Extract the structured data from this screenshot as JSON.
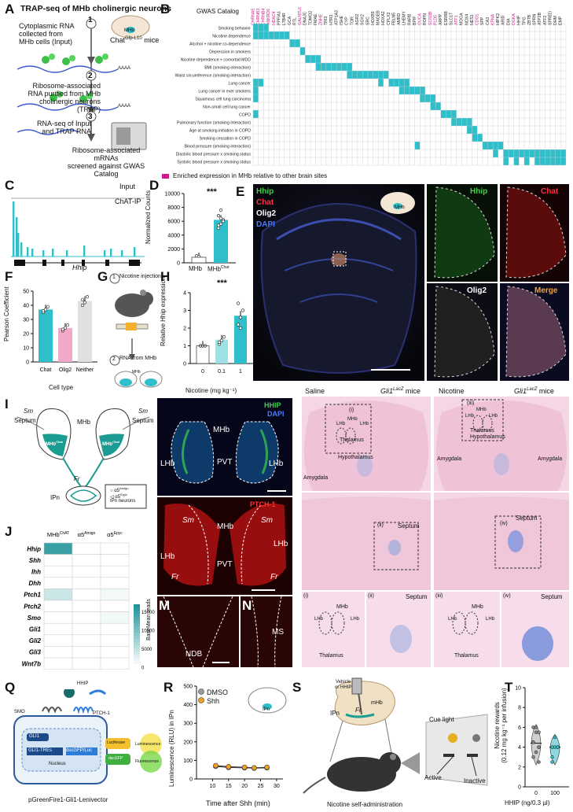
{
  "panels": {
    "A": {
      "label": "A",
      "title": "TRAP-seq of MHb cholinergic neurons",
      "steps": [
        {
          "n": "1",
          "text": "Cytoplasmic RNA\ncollected from\nMHb cells (Input)"
        },
        {
          "n": "2",
          "text": "Ribosome-associated\nRNA purified from MHb\ncholinergic neurons (TRAP)"
        },
        {
          "n": "3",
          "text": "RNA-seq of Input\nand TRAP RNA"
        }
      ],
      "step3b": "Ribosome-associated\nmRNAs\nscreened against GWAS Catalog",
      "mice": "Chat",
      "mice_sup": "Gfp-L10",
      "mice_tail": " mice",
      "mhb": "MHb",
      "aaaa": "AAAA"
    },
    "B": {
      "label": "B",
      "catalog": "GWAS Catalog",
      "genes": [
        "CHRNA5",
        "CHRNB3",
        "CHRNB4",
        "ANKRD6",
        "HDAC4",
        "PPFIA1",
        "LTB4R",
        "GCA",
        "RTL",
        "GALNTL6",
        "DNAJC",
        "TDMO2",
        "FMAE",
        "ZNHE",
        "TRI3",
        "HTR2",
        "ATP1A3",
        "ISHE",
        "CYP",
        "TOR",
        "AGR2",
        "SOX2",
        "SRC",
        "HOXB9",
        "MAGEB",
        "HOXA2",
        "CPLX3",
        "FBLN5",
        "AMRD",
        "LHEMY",
        "RARB",
        "BPIF",
        "GUCA",
        "ROPN",
        "SCN3B",
        "PLD5",
        "ARPP",
        "ESRRB",
        "SLC17",
        "ATP1",
        "MDGA",
        "NOX4",
        "HES1",
        "CDO1",
        "SPP",
        "CA3",
        "KPNA",
        "HIPK2",
        "ARID",
        "DIA",
        "DGKA",
        "HHIP",
        "TPG",
        "ZBTB",
        "SPRN",
        "ATP2B",
        "ATF2",
        "SPRED",
        "DHM",
        "EMP"
      ],
      "highlighted": [
        0,
        1,
        2,
        3,
        4,
        9,
        13,
        32,
        34,
        35,
        39,
        43,
        46,
        50
      ],
      "traits": [
        "Smoking behavior",
        "Nicotine dependence",
        "Alcohol + nicotine co-dependence",
        "Depression in smokers",
        "Nicotine dependence + comorbid MDD",
        "BMI (smoking interaction)",
        "Waist circumference (smoking interaction)",
        "Lung cancer",
        "Lung cancer in ever smokers",
        "Squamous cell lung carcinoma",
        "Non-small cell lung cancer",
        "COPD",
        "Pulmonary function (smoking interaction)",
        "Age at smoking initiation in COPD",
        "Smoking cessation in COPD",
        "Blood pressure (smoking interaction)",
        "Diastolic blood pressure x smoking status",
        "Systolic blood pressure x smoking status"
      ],
      "legend": "Enriched expression in MHb relative to other brain sites",
      "colors": {
        "cell": "#2fbfca",
        "magenta": "#cc1a8a"
      }
    },
    "C": {
      "label": "C",
      "input": "Input",
      "chatip": "ChAT-IP",
      "gene": "Hhip"
    },
    "D": {
      "label": "D",
      "ylabel": "Normalized Counts",
      "yticks": [
        "0",
        "2000",
        "4000",
        "6000",
        "8000",
        "10000"
      ],
      "x1": "MHb",
      "x2": "MHb",
      "x2_sup": "Chat",
      "sig": "***"
    },
    "E": {
      "label": "E",
      "ch1": "Hhip",
      "ch2": "Chat",
      "ch3": "Olig2",
      "ch4": "DAPI",
      "inset": "MHb",
      "merge": "Merge"
    },
    "F": {
      "label": "F",
      "ylabel": "Pearson  Coefficient",
      "yticks": [
        "0",
        "10",
        "20",
        "30",
        "40",
        "50"
      ],
      "categories": [
        "Chat",
        "Olig2",
        "Neither"
      ],
      "xlabel": "Cell type"
    },
    "G": {
      "label": "G",
      "s1": "Nicotine injection",
      "s2": "RNA from MHb",
      "n1": "1",
      "n2": "2",
      "mhb": "MHb"
    },
    "H": {
      "label": "H",
      "ylabel": "Relative Hhip expression",
      "yticks": [
        "0",
        "1",
        "2",
        "3",
        "4"
      ],
      "categories": [
        "0",
        "0.1",
        "1"
      ],
      "xlabel": "Nicotine (mg kg⁻¹)",
      "sig": "***"
    },
    "I": {
      "label": "I",
      "sm": "Sm",
      "septum": "Septum",
      "mhb": "MHb",
      "fr": "Fr",
      "ipn": "IPn",
      "mhbchat": "MHb",
      "chat_sup": "Chat",
      "leg1": "α5",
      "leg1_sup": "Amigo",
      "leg2": "α5",
      "leg2_sup": "Epyc",
      "leg3": "IPn neurons"
    },
    "J": {
      "label": "J",
      "cols": [
        "MHb",
        "α5",
        "α5"
      ],
      "cols_sup": [
        "ChAT",
        "Amigo",
        "Epyc"
      ],
      "rows": [
        "Hhip",
        "Shh",
        "Ihh",
        "Dhh",
        "Ptch1",
        "Ptch2",
        "Smo",
        "Gli1",
        "Gli2",
        "Gli3",
        "Wnt7b"
      ],
      "colorbar_ticks": [
        "0",
        "5000",
        "10000",
        "15000"
      ],
      "colorbar_label": "BaseMean reads"
    },
    "K": {
      "label": "K",
      "hhip": "HHIP",
      "dapi": "DAPI",
      "mhb": "MHb",
      "lhb": "LHb",
      "pvt": "PVT"
    },
    "L": {
      "label": "L",
      "ptch": "PTCH-1",
      "sm": "Sm",
      "mhb": "MHb",
      "lhb": "LHb",
      "pvt": "PVT",
      "fr": "Fr"
    },
    "M": {
      "label": "M",
      "ndb": "NDB"
    },
    "N": {
      "label": "N",
      "ms": "MS"
    },
    "O": {
      "label": "O",
      "cond": "Saline",
      "mice": "Gli1",
      "mice_sup": "LacZ",
      "mice_tail": " mice",
      "i": "(i)",
      "ii": "(ii)",
      "mhb": "MHb",
      "lhb": "LHb",
      "thal": "Thalamus",
      "hypo": "Hypothalamus",
      "amyg": "Amygdala",
      "septum": "Septum"
    },
    "P": {
      "label": "P",
      "cond": "Nicotine",
      "mice": "Gli1",
      "mice_sup": "LacZ",
      "mice_tail": " mice",
      "iii": "(iii)",
      "iv": "(iv)",
      "mhb": "MHb",
      "lhb": "LHb",
      "thal": "Thalamus",
      "hypo": "Hypothalamus",
      "amyg": "Amygdala",
      "septum": "Septum"
    },
    "Q": {
      "label": "Q",
      "hhip": "HHIP",
      "smo": "SMO",
      "ptch": "PTCH-1",
      "gli1": "GLI1",
      "gli1tre": "GLI1-TREs",
      "gfp": "dscGFP/Luc",
      "nucleus": "Nucleus",
      "luciferase": "Luciferase",
      "dscgfp": "dscGFP",
      "lum": "Luminescence",
      "fluor": "Fluorescence",
      "vector": "pGreenFire1-Gli1-Lenivector"
    },
    "R": {
      "label": "R",
      "ylabel": "Luminescence (RLU) in IPn",
      "xlabel": "Time after Shh (min)",
      "yticks": [
        "0",
        "100",
        "200",
        "300",
        "400",
        "500"
      ],
      "xticks": [
        "10",
        "15",
        "20",
        "25",
        "30"
      ],
      "legend": [
        "DMSO",
        "Shh"
      ],
      "ipn": "IPn"
    },
    "S": {
      "label": "S",
      "veh": "Vehicle\nor HHIP",
      "ipn": "IPn",
      "fr": "Fr",
      "mhb": "mHb",
      "cue": "Cue light",
      "active": "Active",
      "inactive": "Inactive",
      "title": "Nicotine self-administration"
    },
    "T": {
      "label": "T",
      "ylabel": "Nicotine rewards\n(0.12 mg kg⁻¹ per infusion)",
      "yticks": [
        "0",
        "2",
        "4",
        "6",
        "8",
        "10"
      ],
      "categories": [
        "0",
        "100"
      ],
      "xlabel": "HHIP (ng/0.3 µl)"
    }
  },
  "chart_data": [
    {
      "panel": "D",
      "type": "bar",
      "categories": [
        "MHb",
        "MHb Chat"
      ],
      "values": [
        800,
        6200
      ],
      "ylim": [
        0,
        10000
      ]
    },
    {
      "panel": "F",
      "type": "bar",
      "categories": [
        "Chat",
        "Olig2",
        "Neither"
      ],
      "values": [
        37,
        24,
        43
      ],
      "ylim": [
        0,
        50
      ],
      "colors": [
        "#2fbfca",
        "#f2a9c9",
        "#e0e0e0"
      ]
    },
    {
      "panel": "H",
      "type": "bar",
      "categories": [
        "0",
        "0.1",
        "1"
      ],
      "values": [
        1.0,
        1.35,
        2.7
      ],
      "ylim": [
        0,
        4
      ]
    },
    {
      "panel": "R",
      "type": "line",
      "x": [
        11,
        15,
        20,
        23,
        27
      ],
      "series": [
        {
          "name": "DMSO",
          "values": [
            68,
            62,
            60,
            58,
            60
          ]
        },
        {
          "name": "Shh",
          "values": [
            72,
            66,
            63,
            60,
            63
          ]
        }
      ],
      "xlim": [
        5,
        32
      ],
      "ylim": [
        0,
        500
      ]
    },
    {
      "panel": "T",
      "type": "violin",
      "categories": [
        "0",
        "100"
      ],
      "values": [
        4.4,
        4.0
      ],
      "ylim": [
        0,
        10
      ],
      "points": [
        [
          3,
          3.5,
          4,
          4.5,
          5.5,
          5.5,
          6,
          6,
          4,
          4.5,
          6,
          2.5
        ],
        [
          3,
          4,
          4,
          4,
          5,
          4,
          2.5
        ]
      ]
    },
    {
      "panel": "J",
      "type": "heatmap",
      "rows": [
        "Hhip",
        "Shh",
        "Ihh",
        "Dhh",
        "Ptch1",
        "Ptch2",
        "Smo",
        "Gli1",
        "Gli2",
        "Gli3",
        "Wnt7b"
      ],
      "cols": [
        "MHb ChAT",
        "α5 Amigo",
        "α5 Epyc"
      ],
      "values": [
        [
          15000,
          0,
          0
        ],
        [
          0,
          0,
          0
        ],
        [
          0,
          0,
          0
        ],
        [
          0,
          0,
          0
        ],
        [
          4000,
          0,
          800
        ],
        [
          0,
          0,
          0
        ],
        [
          0,
          0,
          1000
        ],
        [
          0,
          0,
          0
        ],
        [
          0,
          0,
          0
        ],
        [
          0,
          0,
          0
        ],
        [
          0,
          0,
          0
        ]
      ],
      "vmax": 17000
    }
  ]
}
